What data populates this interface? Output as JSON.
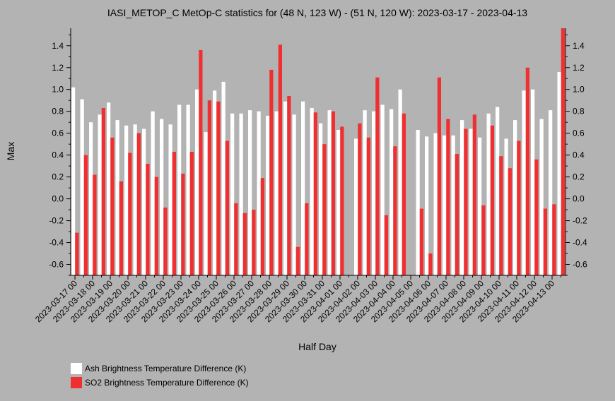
{
  "chart_data": {
    "type": "bar",
    "title": "IASI_METOP_C MetOp-C statistics for (48 N, 123 W) - (51 N, 120 W): 2023-03-17 - 2023-04-13",
    "xlabel": "Half Day",
    "ylabel": "Max",
    "ylim": [
      -0.7,
      1.56
    ],
    "yticks": [
      -0.6,
      -0.4,
      -0.2,
      0.0,
      0.2,
      0.4,
      0.6,
      0.8,
      1.0,
      1.2,
      1.4
    ],
    "yticklabels": [
      "-0.6",
      "-0.4",
      "-0.2",
      "0.0",
      "0.2",
      "0.4",
      "0.6",
      "0.8",
      "1.0",
      "1.2",
      "1.4"
    ],
    "categories": [
      "2023-03-17 00",
      "2023-03-17 12",
      "2023-03-18 00",
      "2023-03-18 12",
      "2023-03-19 00",
      "2023-03-19 12",
      "2023-03-20 00",
      "2023-03-20 12",
      "2023-03-21 00",
      "2023-03-21 12",
      "2023-03-22 00",
      "2023-03-22 12",
      "2023-03-23 00",
      "2023-03-23 12",
      "2023-03-24 00",
      "2023-03-24 12",
      "2023-03-25 00",
      "2023-03-25 12",
      "2023-03-26 00",
      "2023-03-26 12",
      "2023-03-27 00",
      "2023-03-27 12",
      "2023-03-28 00",
      "2023-03-28 12",
      "2023-03-29 00",
      "2023-03-29 12",
      "2023-03-30 00",
      "2023-03-30 12",
      "2023-03-31 00",
      "2023-03-31 12",
      "2023-04-01 00",
      "2023-04-01 12",
      "2023-04-02 00",
      "2023-04-02 12",
      "2023-04-03 00",
      "2023-04-03 12",
      "2023-04-04 00",
      "2023-04-04 12",
      "2023-04-05 00",
      "2023-04-05 12",
      "2023-04-06 00",
      "2023-04-06 12",
      "2023-04-07 00",
      "2023-04-07 12",
      "2023-04-08 00",
      "2023-04-08 12",
      "2023-04-09 00",
      "2023-04-09 12",
      "2023-04-10 00",
      "2023-04-10 12",
      "2023-04-11 00",
      "2023-04-11 12",
      "2023-04-12 00",
      "2023-04-12 12",
      "2023-04-13 00",
      "2023-04-13 12"
    ],
    "xticklabels": [
      "2023-03-17 00",
      "2023-03-18 00",
      "2023-03-19 00",
      "2023-03-20 00",
      "2023-03-21 00",
      "2023-03-22 00",
      "2023-03-23 00",
      "2023-03-24 00",
      "2023-03-25 00",
      "2023-03-26 00",
      "2023-03-27 00",
      "2023-03-28 00",
      "2023-03-29 00",
      "2023-03-30 00",
      "2023-03-31 00",
      "2023-04-01 00",
      "2023-04-02 00",
      "2023-04-03 00",
      "2023-04-04 00",
      "2023-04-05 00",
      "2023-04-06 00",
      "2023-04-07 00",
      "2023-04-08 00",
      "2023-04-09 00",
      "2023-04-10 00",
      "2023-04-11 00",
      "2023-04-12 00",
      "2023-04-13 00"
    ],
    "series": [
      {
        "name": "Ash Brightness Temperature Difference (K)",
        "color": "#ffffff",
        "values": [
          1.02,
          0.91,
          0.7,
          0.77,
          0.88,
          0.72,
          0.67,
          0.68,
          0.64,
          0.8,
          0.73,
          0.68,
          0.86,
          0.86,
          1.0,
          0.61,
          0.99,
          1.07,
          0.78,
          0.78,
          0.81,
          0.8,
          0.76,
          0.8,
          0.89,
          0.77,
          0.89,
          0.83,
          0.69,
          0.81,
          0.63,
          null,
          0.55,
          0.81,
          0.8,
          0.86,
          0.82,
          1.0,
          null,
          0.63,
          0.57,
          0.6,
          0.58,
          0.58,
          0.72,
          0.64,
          0.56,
          0.78,
          0.84,
          0.55,
          0.72,
          0.99,
          1.0,
          0.73,
          0.81,
          1.16
        ]
      },
      {
        "name": "SO2 Brightness Temperature Difference (K)",
        "color": "#f03030",
        "values": [
          -0.31,
          0.4,
          0.22,
          0.83,
          0.56,
          0.16,
          0.42,
          0.6,
          0.32,
          0.2,
          -0.08,
          0.43,
          0.23,
          0.43,
          1.36,
          0.9,
          0.89,
          0.53,
          -0.04,
          -0.13,
          -0.1,
          0.19,
          1.18,
          1.41,
          0.94,
          -0.44,
          -0.04,
          0.79,
          0.5,
          0.8,
          0.66,
          null,
          0.69,
          0.56,
          1.11,
          -0.15,
          0.48,
          0.78,
          null,
          -0.09,
          -0.5,
          1.11,
          0.73,
          0.41,
          0.64,
          0.77,
          -0.06,
          0.67,
          0.39,
          0.28,
          0.53,
          1.2,
          0.36,
          -0.09,
          -0.05,
          1.56
        ]
      }
    ],
    "grid": false,
    "legend_position": "bottom-left"
  },
  "legend": {
    "items": [
      {
        "label": "Ash Brightness Temperature Difference (K)",
        "color": "#ffffff"
      },
      {
        "label": "SO2 Brightness Temperature Difference (K)",
        "color": "#f03030"
      }
    ]
  }
}
